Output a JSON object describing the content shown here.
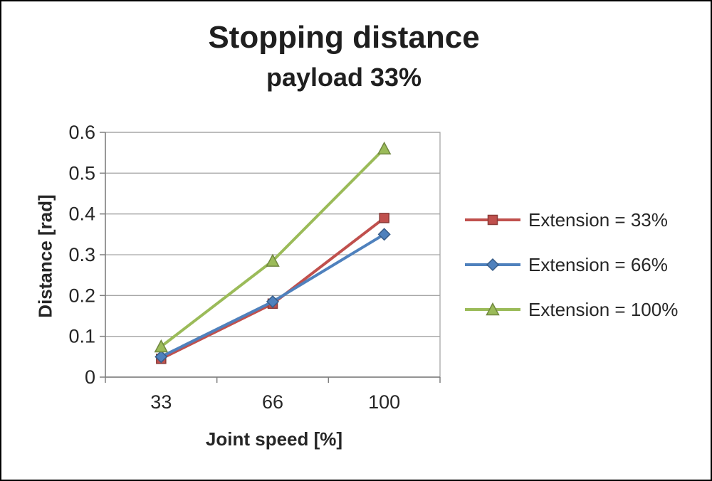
{
  "chart_data": {
    "type": "line",
    "title": "Stopping distance",
    "subtitle": "payload 33%",
    "xlabel": "Joint speed [%]",
    "ylabel": "Distance [rad]",
    "categories": [
      "33",
      "66",
      "100"
    ],
    "series": [
      {
        "name": "Extension = 33%",
        "marker": "square",
        "color": "#C0504D",
        "values": [
          0.045,
          0.18,
          0.39
        ]
      },
      {
        "name": "Extension = 66%",
        "marker": "diamond",
        "color": "#4F81BD",
        "values": [
          0.05,
          0.185,
          0.35
        ]
      },
      {
        "name": "Extension = 100%",
        "marker": "triangle",
        "color": "#9BBB59",
        "values": [
          0.075,
          0.285,
          0.56
        ]
      }
    ],
    "ylim": [
      0,
      0.6
    ],
    "yticks": [
      0,
      0.1,
      0.2,
      0.3,
      0.4,
      0.5,
      0.6
    ],
    "ytick_labels": [
      "0",
      "0.1",
      "0.2",
      "0.3",
      "0.4",
      "0.5",
      "0.6"
    ],
    "grid": "horizontal",
    "legend_position": "right",
    "colors": {
      "gridline": "#A6A6A6",
      "axis": "#7f7f7f",
      "text": "#262626"
    }
  }
}
